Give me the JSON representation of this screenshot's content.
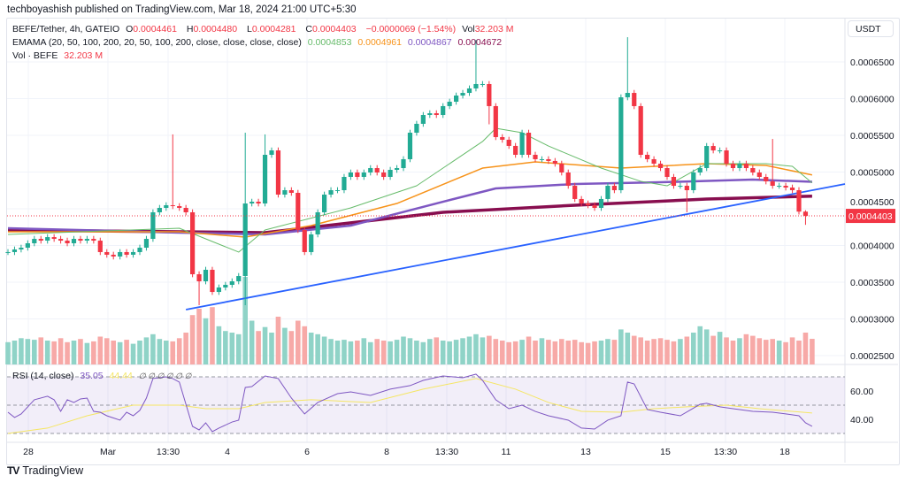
{
  "header": {
    "published": "techboyashish published on TradingView.com, Mar 18, 2024 21:00 UTC+5:30"
  },
  "legend": {
    "symbol": "BEFE/Tether, 4h, GATEIO",
    "o_label": "O",
    "o": "0.0004461",
    "h_label": "H",
    "h": "0.0004480",
    "l_label": "L",
    "l": "0.0004281",
    "c_label": "C",
    "c": "0.0004403",
    "change": "−0.0000069 (−1.54%)",
    "vol_label": "Vol",
    "vol": "32.203 M",
    "ema_label": "EMAMA (20, 50, 100, 200, 20, 50, 100, 200, close, close, close, close)",
    "ema_values": [
      "0.0004853",
      "0.0004961",
      "0.0004867",
      "0.0004672"
    ],
    "vol_ind_label": "Vol · BEFE",
    "vol_ind_value": "32.203 M"
  },
  "rsi_legend": {
    "label": "RSI (14, close)",
    "value": "35.05",
    "ma_value": "44.44",
    "na": "∅ ∅ ∅ ∅ ∅ ∅"
  },
  "currency_button": "USDT",
  "last_price_label": "0.0004403",
  "price_axis": [
    "0.0006500",
    "0.0006000",
    "0.0005500",
    "0.0005000",
    "0.0004500",
    "0.0004000",
    "0.0003500",
    "0.0003000",
    "0.0002500"
  ],
  "rsi_axis": [
    "60.00",
    "40.00"
  ],
  "time_axis": [
    "28",
    "Mar",
    "13:30",
    "4",
    "6",
    "8",
    "13:30",
    "11",
    "13",
    "15",
    "13:30",
    "18"
  ],
  "branding": "TradingView",
  "colors": {
    "up": "#22ab94",
    "down": "#f23645",
    "vol_up": "#8fd3c7",
    "vol_down": "#f7a9a7",
    "ema20": "#66bb6a",
    "ema50": "#f7931a",
    "ema100": "#7e57c2",
    "ema200": "#880e4f",
    "trend": "#2962ff",
    "rsi": "#7e57c2",
    "rsi_ma": "#f5e663",
    "rsi_band": "#7e57c2"
  },
  "chart_data": {
    "type": "candlestick",
    "interval": "4h",
    "y_range": [
      0.00024,
      0.00068
    ],
    "close": [
      0.000391,
      0.0003946,
      0.000397,
      0.000403,
      0.000409,
      0.0004066,
      0.0004114,
      0.000409,
      0.0004066,
      0.000403,
      0.000409,
      0.0004066,
      0.000409,
      0.0004066,
      0.000391,
      0.0003874,
      0.000385,
      0.000391,
      0.0003874,
      0.000391,
      0.000397,
      0.000409,
      0.0004452,
      0.0004512,
      0.0004548,
      0.0004536,
      0.0004512,
      0.0004452,
      0.0003608,
      0.0003512,
      0.0003669,
      0.0003367,
      0.0003428,
      0.0003464,
      0.0003512,
      0.0003584,
      0.0004572,
      0.0004596,
      0.0004572,
      0.0005235,
      0.0005295,
      0.0004693,
      0.0004753,
      0.0004717,
      0.0004211,
      0.000391,
      0.0004151,
      0.0004452,
      0.0004693,
      0.0004753,
      0.0004753,
      0.0004934,
      0.0004994,
      0.0004934,
      0.0004994,
      0.0005054,
      0.0004994,
      0.0004934,
      0.000503,
      0.0005054,
      0.0005175,
      0.0005536,
      0.0005657,
      0.0005777,
      0.0005801,
      0.0005777,
      0.0005898,
      0.0005958,
      0.0006042,
      0.0006078,
      0.0006139,
      0.0006199,
      0.0006199,
      0.0005898,
      0.0005476,
      0.000544,
      0.0005356,
      0.0005235,
      0.0005536,
      0.0005235,
      0.0005175,
      0.0005175,
      0.0005151,
      0.0005114,
      0.0004994,
      0.0004813,
      0.0004633,
      0.0004572,
      0.0004548,
      0.0004512,
      0.0004633,
      0.0004813,
      0.0004753,
      0.0006018,
      0.0006078,
      0.0005898,
      0.0005235,
      0.0005175,
      0.0005114,
      0.0005054,
      0.0004934,
      0.0004813,
      0.0004813,
      0.0004753,
      0.0004994,
      0.0005054,
      0.0005355,
      0.0005295,
      0.0005295,
      0.0005114,
      0.0005054,
      0.0005114,
      0.0005054,
      0.0004994,
      0.0004934,
      0.0004873,
      0.0004813,
      0.0004813,
      0.0004789,
      0.0004753,
      0.0004461,
      0.0004403
    ],
    "notable_wicks": [
      {
        "index": 25,
        "high": 0.0005513
      },
      {
        "index": 29,
        "low": 0.0003187
      },
      {
        "index": 36,
        "high": 0.0005536,
        "low": 0.0003187
      },
      {
        "index": 39,
        "high": 0.0005513
      },
      {
        "index": 71,
        "high": 0.0006801
      },
      {
        "index": 73,
        "low": 0.000565
      },
      {
        "index": 94,
        "high": 0.0006837
      },
      {
        "index": 103,
        "low": 0.0004452
      },
      {
        "index": 116,
        "high": 0.0005451
      },
      {
        "index": 121,
        "high": 0.000448,
        "low": 0.0004281
      }
    ],
    "last": {
      "open": 0.0004461,
      "high": 0.000448,
      "low": 0.0004281,
      "close": 0.0004403
    },
    "volume_M": [
      28,
      30,
      33,
      32,
      31,
      34,
      30,
      29,
      33,
      28,
      30,
      32,
      27,
      29,
      35,
      33,
      30,
      28,
      31,
      26,
      30,
      34,
      38,
      32,
      30,
      29,
      33,
      40,
      62,
      70,
      58,
      72,
      48,
      42,
      40,
      38,
      110,
      55,
      42,
      47,
      40,
      60,
      46,
      42,
      55,
      48,
      40,
      38,
      35,
      32,
      30,
      31,
      29,
      30,
      33,
      28,
      32,
      30,
      29,
      31,
      35,
      33,
      30,
      28,
      32,
      34,
      30,
      29,
      31,
      33,
      35,
      38,
      34,
      36,
      32,
      30,
      28,
      29,
      31,
      35,
      30,
      33,
      31,
      29,
      32,
      30,
      31,
      28,
      27,
      29,
      30,
      32,
      31,
      44,
      40,
      36,
      34,
      30,
      32,
      33,
      31,
      29,
      32,
      35,
      40,
      48,
      44,
      36,
      41,
      34,
      30,
      33,
      38,
      36,
      33,
      31,
      32,
      30,
      28,
      34,
      30,
      40,
      32.203
    ],
    "ema": {
      "ema20": [
        [
          0,
          0.0004151
        ],
        [
          26,
          0.0004235
        ],
        [
          35,
          0.000391
        ],
        [
          39,
          0.0004211
        ],
        [
          52,
          0.0004512
        ],
        [
          62,
          0.0004813
        ],
        [
          72,
          0.0005416
        ],
        [
          74,
          0.0005596
        ],
        [
          78,
          0.0005536
        ],
        [
          82,
          0.0005355
        ],
        [
          90,
          0.0005054
        ],
        [
          96,
          0.0004874
        ],
        [
          100,
          0.0004813
        ],
        [
          106,
          0.0005114
        ],
        [
          115,
          0.0005114
        ],
        [
          119,
          0.0005078
        ],
        [
          122,
          0.0004853
        ]
      ],
      "ema50": [
        [
          0,
          0.0004187
        ],
        [
          26,
          0.0004187
        ],
        [
          36,
          0.0004114
        ],
        [
          46,
          0.0004271
        ],
        [
          59,
          0.0004572
        ],
        [
          72,
          0.0005054
        ],
        [
          80,
          0.0005139
        ],
        [
          93,
          0.0005054
        ],
        [
          106,
          0.0005114
        ],
        [
          115,
          0.000509
        ],
        [
          122,
          0.0004961
        ]
      ],
      "ema100": [
        [
          0,
          0.0004235
        ],
        [
          26,
          0.0004175
        ],
        [
          39,
          0.0004151
        ],
        [
          52,
          0.0004271
        ],
        [
          66,
          0.0004596
        ],
        [
          74,
          0.0004777
        ],
        [
          86,
          0.0004837
        ],
        [
          99,
          0.0004861
        ],
        [
          113,
          0.0004898
        ],
        [
          122,
          0.0004867
        ]
      ],
      "ema200": [
        [
          0,
          0.0004211
        ],
        [
          39,
          0.0004175
        ],
        [
          66,
          0.0004452
        ],
        [
          86,
          0.0004548
        ],
        [
          106,
          0.0004632
        ],
        [
          122,
          0.0004672
        ]
      ]
    },
    "trendline": [
      [
        27,
        0.0003127
      ],
      [
        127,
        0.0004837
      ]
    ],
    "rsi": {
      "levels": [
        70,
        50,
        30
      ],
      "rsi": [
        [
          0,
          45
        ],
        [
          1,
          41.3
        ],
        [
          2,
          43.8
        ],
        [
          4,
          53.8
        ],
        [
          6,
          56.3
        ],
        [
          7,
          53.8
        ],
        [
          8,
          45.6
        ],
        [
          9,
          53.8
        ],
        [
          10,
          51.9
        ],
        [
          11,
          54.4
        ],
        [
          12,
          55
        ],
        [
          13,
          45.6
        ],
        [
          14,
          45
        ],
        [
          15,
          42.5
        ],
        [
          17,
          39.4
        ],
        [
          18,
          45
        ],
        [
          19,
          42.5
        ],
        [
          20,
          46.3
        ],
        [
          21,
          55
        ],
        [
          22,
          68.8
        ],
        [
          24,
          70
        ],
        [
          25,
          68.8
        ],
        [
          26,
          66.3
        ],
        [
          28,
          35
        ],
        [
          29,
          32.5
        ],
        [
          30,
          37.5
        ],
        [
          31,
          31.3
        ],
        [
          32,
          33.8
        ],
        [
          34,
          38.1
        ],
        [
          35,
          39.4
        ],
        [
          36,
          62.5
        ],
        [
          37,
          63.1
        ],
        [
          39,
          70.6
        ],
        [
          41,
          68.8
        ],
        [
          43,
          55
        ],
        [
          45,
          43.8
        ],
        [
          47,
          51.9
        ],
        [
          50,
          58.1
        ],
        [
          52,
          59.4
        ],
        [
          55,
          56.9
        ],
        [
          58,
          61.3
        ],
        [
          61,
          63.8
        ],
        [
          63,
          67.5
        ],
        [
          66,
          70.6
        ],
        [
          69,
          69.4
        ],
        [
          71,
          71.9
        ],
        [
          72,
          67.5
        ],
        [
          74,
          53.8
        ],
        [
          76,
          47.5
        ],
        [
          78,
          50
        ],
        [
          80,
          45.6
        ],
        [
          82,
          42.5
        ],
        [
          85,
          39.4
        ],
        [
          87,
          33.8
        ],
        [
          89,
          33.1
        ],
        [
          91,
          39.4
        ],
        [
          93,
          42.5
        ],
        [
          94,
          66.3
        ],
        [
          95,
          65
        ],
        [
          97,
          46.9
        ],
        [
          99,
          45
        ],
        [
          102,
          42.5
        ],
        [
          105,
          50.6
        ],
        [
          106,
          51.3
        ],
        [
          108,
          48.8
        ],
        [
          110,
          47.5
        ],
        [
          113,
          45.6
        ],
        [
          116,
          45
        ],
        [
          118,
          43.8
        ],
        [
          120,
          42.5
        ],
        [
          121,
          37.5
        ],
        [
          122,
          35.05
        ]
      ],
      "ma": [
        [
          0,
          30
        ],
        [
          6,
          33.8
        ],
        [
          12,
          42.5
        ],
        [
          19,
          50
        ],
        [
          26,
          50
        ],
        [
          30,
          47.5
        ],
        [
          35,
          47.5
        ],
        [
          39,
          51.9
        ],
        [
          46,
          53.8
        ],
        [
          55,
          51.9
        ],
        [
          63,
          61.3
        ],
        [
          71,
          68.8
        ],
        [
          77,
          61.3
        ],
        [
          82,
          51.9
        ],
        [
          87,
          45.6
        ],
        [
          93,
          45
        ],
        [
          98,
          47.5
        ],
        [
          103,
          48.8
        ],
        [
          109,
          50
        ],
        [
          114,
          47.5
        ],
        [
          122,
          44.44
        ]
      ]
    }
  }
}
